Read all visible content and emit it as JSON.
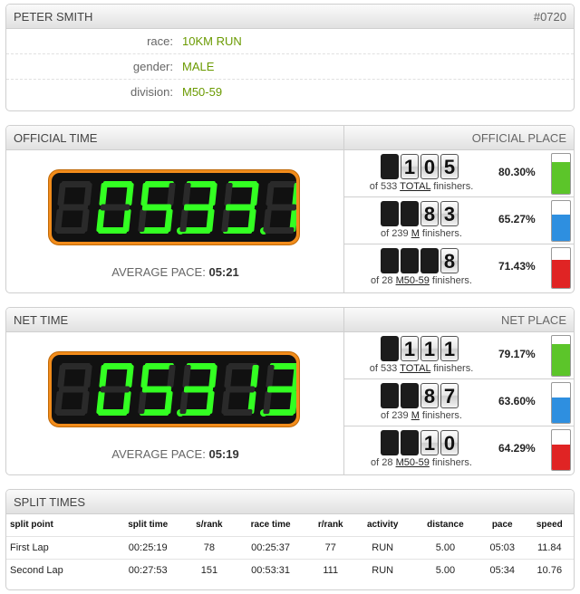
{
  "runner": {
    "name": "PETER SMITH",
    "bib": "#0720"
  },
  "info": [
    {
      "label": "race:",
      "value": "10KM RUN"
    },
    {
      "label": "gender:",
      "value": "MALE"
    },
    {
      "label": "division:",
      "value": "M50-59"
    }
  ],
  "official": {
    "time_title": "OFFICIAL TIME",
    "place_title": "OFFICIAL PLACE",
    "clock": "05331",
    "pace_label": "AVERAGE PACE:",
    "pace_value": "05:21",
    "places": [
      {
        "digits": [
          "",
          "1",
          "0",
          "5"
        ],
        "of": "of 533",
        "cat": "TOTAL",
        "suffix": "finishers.",
        "percent": "80.30%",
        "fraction": 0.803,
        "color": "#5cc52a"
      },
      {
        "digits": [
          "",
          "",
          "8",
          "3"
        ],
        "of": "of 239",
        "cat": "M",
        "suffix": "finishers.",
        "percent": "65.27%",
        "fraction": 0.6527,
        "color": "#2e8fe0"
      },
      {
        "digits": [
          "",
          "",
          "",
          "8"
        ],
        "of": "of 28",
        "cat": "M50-59",
        "suffix": "finishers.",
        "percent": "71.43%",
        "fraction": 0.7143,
        "color": "#e02424"
      }
    ]
  },
  "net": {
    "time_title": "NET TIME",
    "place_title": "NET PLACE",
    "clock": "05313",
    "pace_label": "AVERAGE PACE:",
    "pace_value": "05:19",
    "places": [
      {
        "digits": [
          "",
          "1",
          "1",
          "1"
        ],
        "of": "of 533",
        "cat": "TOTAL",
        "suffix": "finishers.",
        "percent": "79.17%",
        "fraction": 0.7917,
        "color": "#5cc52a"
      },
      {
        "digits": [
          "",
          "",
          "8",
          "7"
        ],
        "of": "of 239",
        "cat": "M",
        "suffix": "finishers.",
        "percent": "63.60%",
        "fraction": 0.636,
        "color": "#2e8fe0"
      },
      {
        "digits": [
          "",
          "",
          "1",
          "0"
        ],
        "of": "of 28",
        "cat": "M50-59",
        "suffix": "finishers.",
        "percent": "64.29%",
        "fraction": 0.6429,
        "color": "#e02424"
      }
    ]
  },
  "splits": {
    "title": "SPLIT TIMES",
    "columns": [
      "split point",
      "split time",
      "s/rank",
      "race time",
      "r/rank",
      "activity",
      "distance",
      "pace",
      "speed"
    ],
    "rows": [
      [
        "First Lap",
        "00:25:19",
        "78",
        "00:25:37",
        "77",
        "RUN",
        "5.00",
        "05:03",
        "11.84"
      ],
      [
        "Second Lap",
        "00:27:53",
        "151",
        "00:53:31",
        "111",
        "RUN",
        "5.00",
        "05:34",
        "10.76"
      ]
    ]
  }
}
